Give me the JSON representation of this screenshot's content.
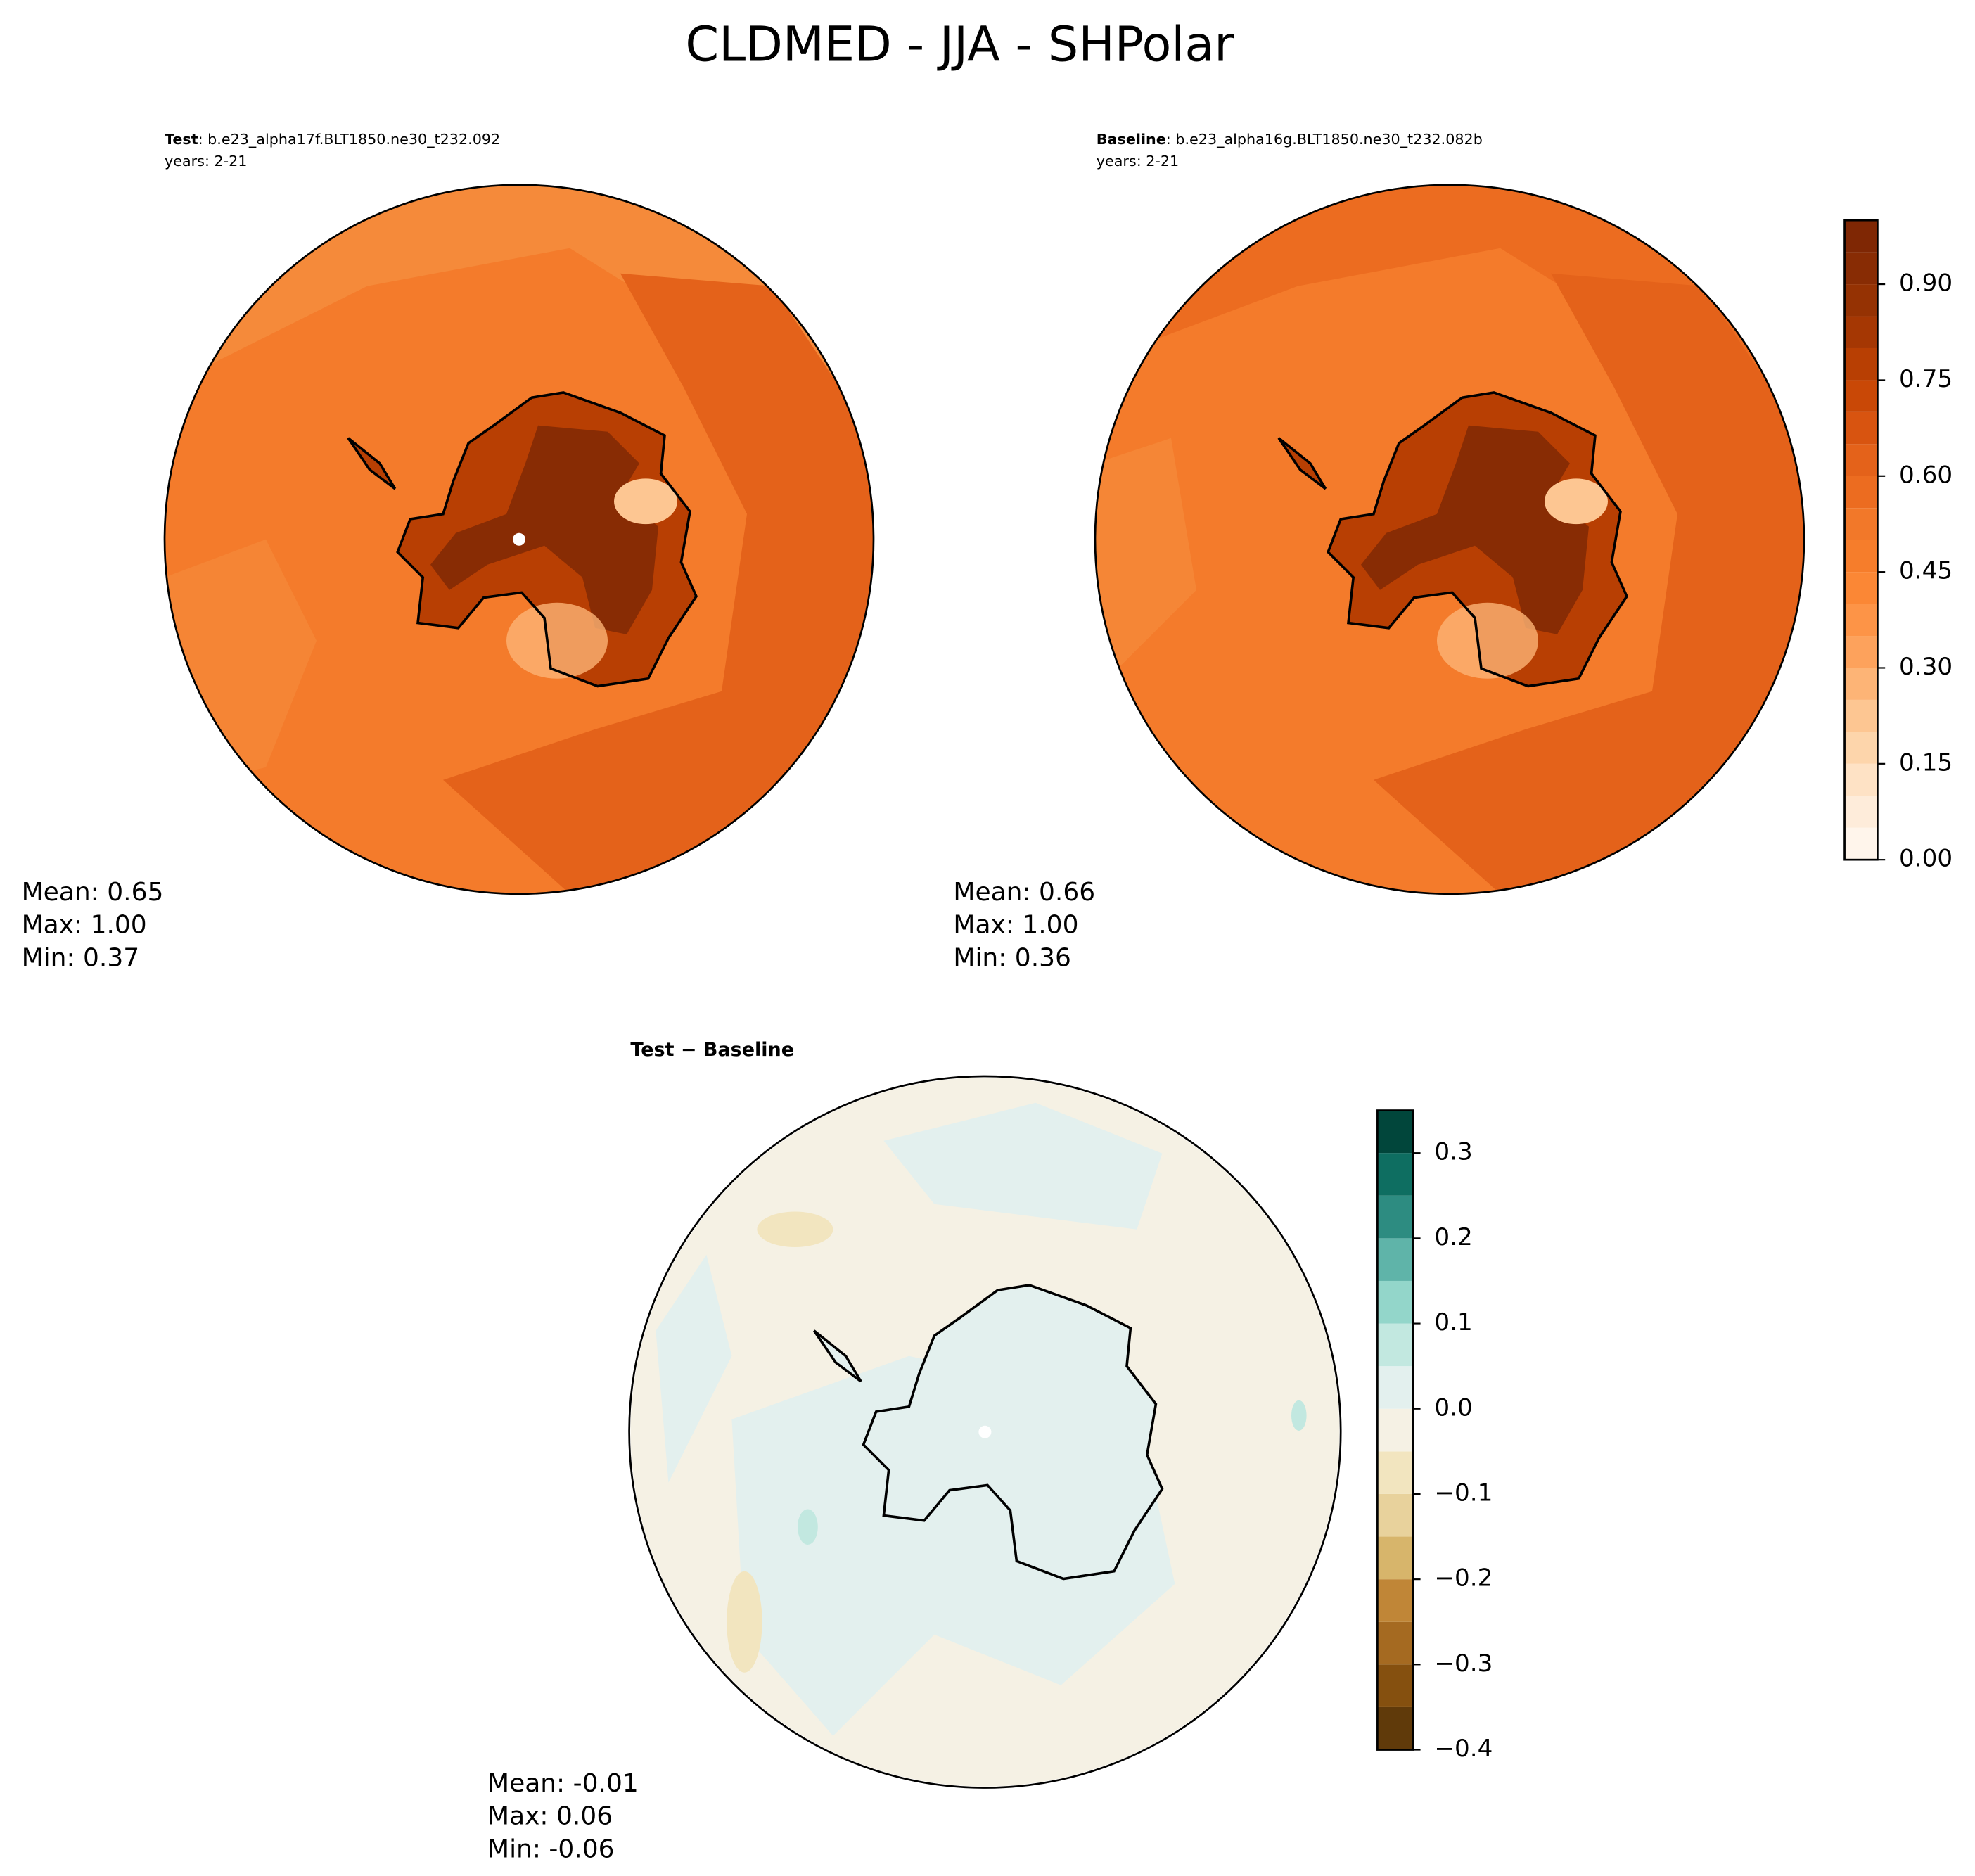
{
  "title": "CLDMED - JJA - SHPolar",
  "chart_data": [
    {
      "type": "map",
      "label_bold": "Test",
      "label": ": b.e23_alpha17f.BLT1850.ne30_t232.092",
      "subtitle": "years: 2-21",
      "stats": [
        "Mean:  0.65",
        "Max:  1.00",
        "Min:  0.37"
      ]
    },
    {
      "type": "map",
      "label_bold": "Baseline",
      "label": ": b.e23_alpha16g.BLT1850.ne30_t232.082b",
      "subtitle": "years: 2-21",
      "stats": [
        "Mean:  0.66",
        "Max:  1.00",
        "Min:  0.36"
      ],
      "colorbar": {
        "levels": [
          0,
          0.05,
          0.1,
          0.15,
          0.2,
          0.25,
          0.3,
          0.35,
          0.4,
          0.45,
          0.5,
          0.55,
          0.6,
          0.65,
          0.7,
          0.75,
          0.8,
          0.85,
          0.9,
          0.95,
          1.0
        ],
        "colors": [
          "#fff5eb",
          "#feecda",
          "#fee2c5",
          "#fdd5ab",
          "#fdc692",
          "#fdb476",
          "#fda25c",
          "#fd9447",
          "#fb8735",
          "#f67d2b",
          "#f27829",
          "#ec6c20",
          "#e4621a",
          "#d85410",
          "#c94806",
          "#b83f03",
          "#a53703",
          "#953203",
          "#882c04",
          "#7f2704"
        ],
        "ticks": [
          {
            "value": 0,
            "label": "0.00"
          },
          0.15,
          {
            "value": 0.3,
            "label": "0.30"
          },
          0.45,
          {
            "value": 0.6,
            "label": "0.60"
          },
          0.75,
          {
            "value": 0.9,
            "label": "0.90"
          }
        ]
      }
    },
    {
      "type": "map",
      "label_bold": "Test − Baseline",
      "stats": [
        "Mean: -0.01",
        "Max:  0.06",
        "Min: -0.06"
      ],
      "colorbar": {
        "levels": [
          -0.4,
          -0.35,
          -0.3,
          -0.25,
          -0.2,
          -0.15,
          -0.1,
          -0.05,
          0,
          0.05,
          0.1,
          0.15,
          0.2,
          0.25,
          0.3,
          0.35
        ],
        "colors": [
          "#603a0a",
          "#85500f",
          "#a56a21",
          "#c08637",
          "#d7b56b",
          "#e8d29c",
          "#f2e5bf",
          "#f5f1e4",
          "#e3f0ee",
          "#c2e8e0",
          "#93d6ca",
          "#5fb4a9",
          "#2d8c81",
          "#0e6e61",
          "#01463b"
        ],
        "ticks": [
          {
            "value": -0.4,
            "label": "−0.4"
          },
          {
            "value": -0.3,
            "label": "−0.3"
          },
          {
            "value": -0.2,
            "label": "−0.2"
          },
          {
            "value": -0.1,
            "label": "−0.1"
          },
          {
            "value": 0,
            "label": "0.0"
          },
          0.1,
          0.2,
          0.3
        ]
      }
    }
  ]
}
